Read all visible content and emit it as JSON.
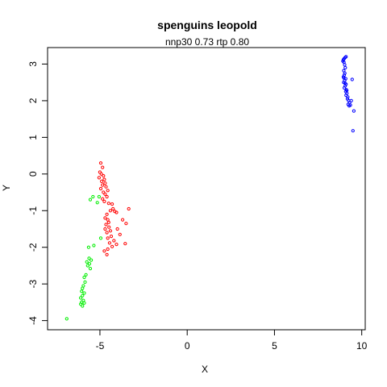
{
  "chart_data": {
    "type": "scatter",
    "title": "spenguins leopold",
    "subtitle": "nnp30 0.73 rtp 0.80",
    "xlabel": "X",
    "ylabel": "Y",
    "xlim": [
      -8,
      10.2
    ],
    "ylim": [
      -4.25,
      3.45
    ],
    "xticks": [
      -5,
      0,
      5,
      10
    ],
    "yticks": [
      -4,
      -3,
      -2,
      -1,
      0,
      1,
      2,
      3
    ],
    "grid": false,
    "series": [
      {
        "name": "blue",
        "color": "#0000ff",
        "points": [
          [
            9.05,
            3.18
          ],
          [
            9.0,
            3.15
          ],
          [
            8.95,
            3.12
          ],
          [
            9.1,
            3.2
          ],
          [
            8.98,
            3.05
          ],
          [
            9.02,
            2.98
          ],
          [
            8.92,
            3.08
          ],
          [
            9.06,
            2.9
          ],
          [
            8.97,
            2.82
          ],
          [
            9.03,
            2.75
          ],
          [
            9.0,
            2.7
          ],
          [
            8.95,
            2.65
          ],
          [
            9.08,
            2.6
          ],
          [
            9.02,
            2.55
          ],
          [
            8.96,
            2.5
          ],
          [
            9.1,
            2.45
          ],
          [
            9.05,
            2.4
          ],
          [
            9.0,
            2.35
          ],
          [
            9.12,
            2.3
          ],
          [
            9.08,
            2.25
          ],
          [
            9.15,
            2.2
          ],
          [
            9.1,
            2.15
          ],
          [
            9.2,
            2.1
          ],
          [
            9.18,
            2.05
          ],
          [
            9.25,
            2.0
          ],
          [
            9.3,
            1.95
          ],
          [
            9.22,
            1.9
          ],
          [
            9.28,
            1.86
          ],
          [
            9.35,
            1.88
          ],
          [
            9.4,
            2.0
          ],
          [
            9.45,
            2.58
          ],
          [
            9.55,
            1.72
          ],
          [
            9.5,
            1.18
          ],
          [
            8.98,
            2.62
          ],
          [
            9.04,
            2.48
          ],
          [
            9.14,
            2.28
          ]
        ]
      },
      {
        "name": "red",
        "color": "#ff0000",
        "points": [
          [
            -4.95,
            0.3
          ],
          [
            -4.85,
            0.18
          ],
          [
            -5.0,
            0.05
          ],
          [
            -4.92,
            0.0
          ],
          [
            -4.8,
            -0.05
          ],
          [
            -5.05,
            -0.1
          ],
          [
            -4.75,
            -0.15
          ],
          [
            -4.9,
            -0.2
          ],
          [
            -4.7,
            -0.25
          ],
          [
            -4.85,
            -0.3
          ],
          [
            -4.65,
            -0.35
          ],
          [
            -4.95,
            -0.4
          ],
          [
            -4.55,
            -0.45
          ],
          [
            -4.8,
            -0.5
          ],
          [
            -4.7,
            -0.55
          ],
          [
            -4.6,
            -0.62
          ],
          [
            -4.85,
            -0.68
          ],
          [
            -4.75,
            -0.75
          ],
          [
            -4.5,
            -0.8
          ],
          [
            -4.3,
            -0.82
          ],
          [
            -4.25,
            -0.95
          ],
          [
            -4.15,
            -1.02
          ],
          [
            -4.05,
            -1.05
          ],
          [
            -4.4,
            -1.0
          ],
          [
            -3.35,
            -0.95
          ],
          [
            -4.6,
            -1.1
          ],
          [
            -4.7,
            -1.2
          ],
          [
            -4.55,
            -1.25
          ],
          [
            -4.5,
            -1.32
          ],
          [
            -4.65,
            -1.38
          ],
          [
            -4.48,
            -1.45
          ],
          [
            -4.7,
            -1.5
          ],
          [
            -4.4,
            -1.55
          ],
          [
            -4.6,
            -1.6
          ],
          [
            -4.35,
            -1.7
          ],
          [
            -4.55,
            -1.75
          ],
          [
            -4.2,
            -1.82
          ],
          [
            -4.45,
            -1.88
          ],
          [
            -3.55,
            -1.9
          ],
          [
            -4.05,
            -1.92
          ],
          [
            -4.3,
            -1.98
          ],
          [
            -4.55,
            -2.05
          ],
          [
            -4.75,
            -2.1
          ],
          [
            -4.6,
            -2.2
          ],
          [
            -3.5,
            -1.35
          ],
          [
            -3.7,
            -1.25
          ],
          [
            -4.0,
            -1.5
          ],
          [
            -3.85,
            -1.65
          ]
        ]
      },
      {
        "name": "green",
        "color": "#00ee00",
        "points": [
          [
            -5.4,
            -0.62
          ],
          [
            -5.55,
            -0.7
          ],
          [
            -5.05,
            -0.62
          ],
          [
            -5.15,
            -0.78
          ],
          [
            -4.95,
            -1.75
          ],
          [
            -5.35,
            -1.95
          ],
          [
            -5.65,
            -2.0
          ],
          [
            -5.5,
            -2.35
          ],
          [
            -5.6,
            -2.45
          ],
          [
            -5.7,
            -2.5
          ],
          [
            -5.55,
            -2.58
          ],
          [
            -5.8,
            -2.75
          ],
          [
            -5.9,
            -2.82
          ],
          [
            -5.85,
            -2.95
          ],
          [
            -5.95,
            -3.05
          ],
          [
            -6.0,
            -3.12
          ],
          [
            -6.05,
            -3.2
          ],
          [
            -5.9,
            -3.25
          ],
          [
            -6.0,
            -3.32
          ],
          [
            -6.1,
            -3.38
          ],
          [
            -5.95,
            -3.45
          ],
          [
            -6.05,
            -3.5
          ],
          [
            -5.9,
            -3.52
          ],
          [
            -6.1,
            -3.55
          ],
          [
            -6.0,
            -3.6
          ],
          [
            -6.9,
            -3.95
          ],
          [
            -5.75,
            -2.4
          ],
          [
            -5.62,
            -2.3
          ]
        ]
      }
    ]
  }
}
